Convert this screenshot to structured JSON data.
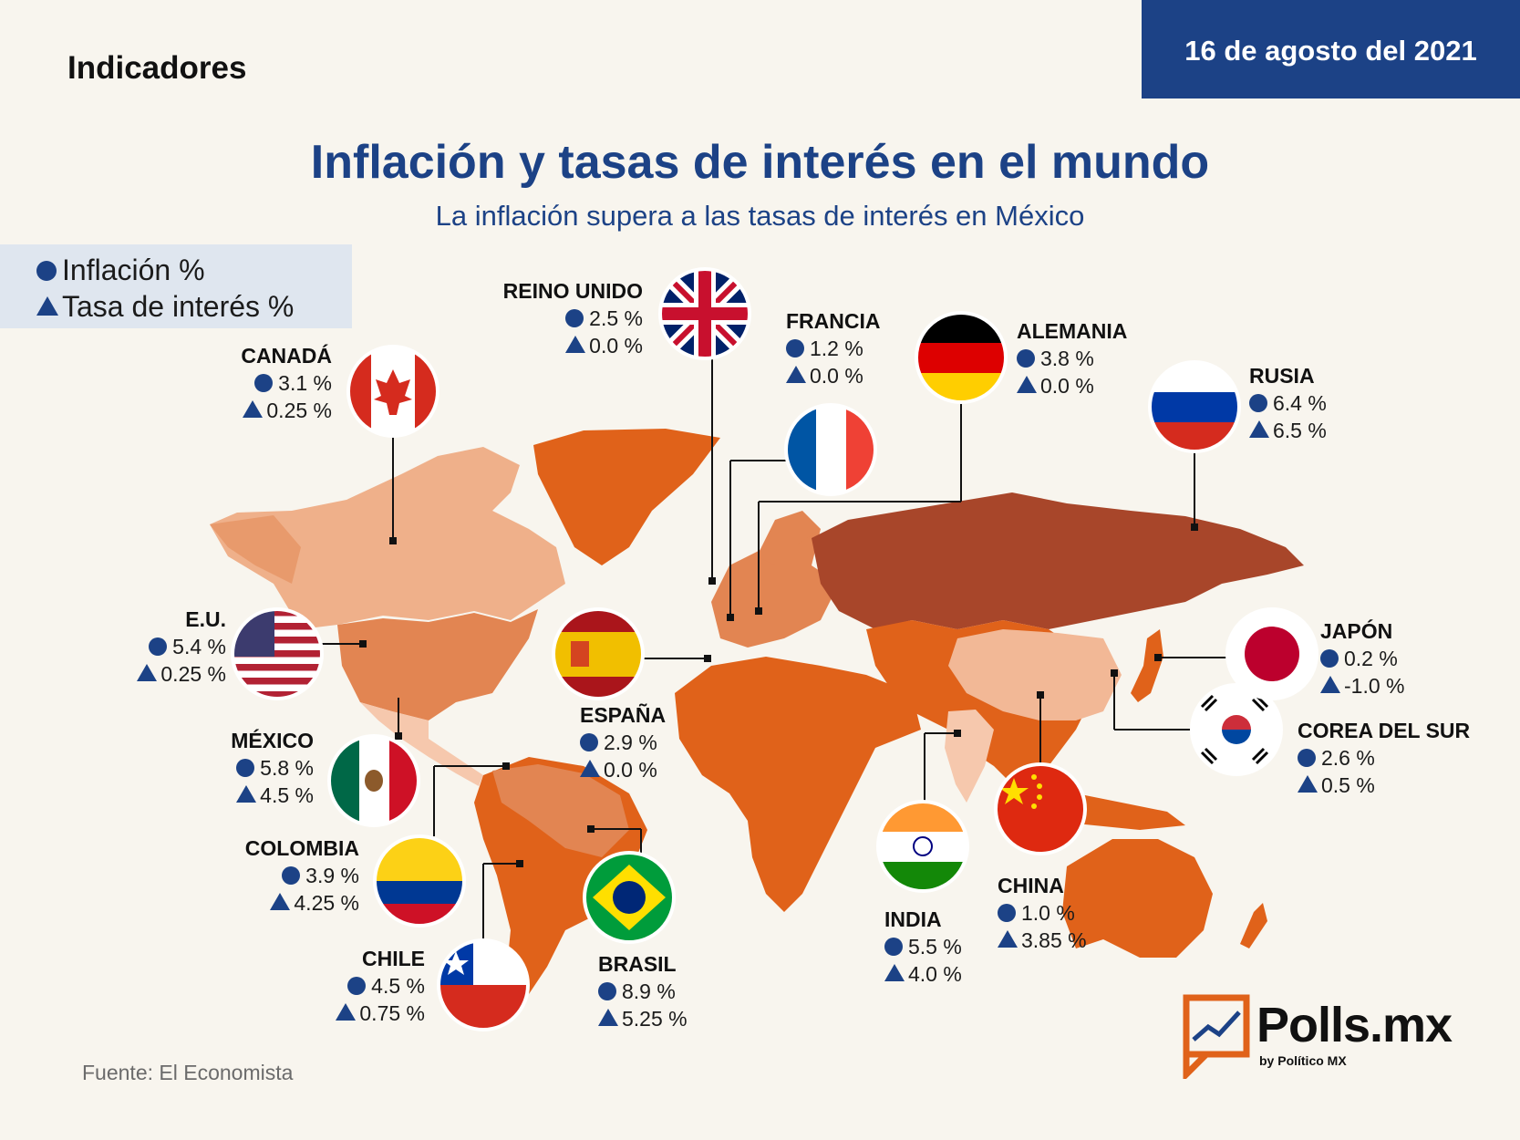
{
  "header": {
    "section": "Indicadores",
    "date": "16 de agosto del 2021"
  },
  "title": "Inflación y tasas de interés en el mundo",
  "subtitle": "La inflación supera a las tasas de interés en México",
  "legend": {
    "inflation": "Inflación %",
    "rate": "Tasa de interés %"
  },
  "countries": {
    "canada": {
      "name": "CANADÁ",
      "inflation": "3.1 %",
      "rate": "0.25 %"
    },
    "uk": {
      "name": "REINO UNIDO",
      "inflation": "2.5 %",
      "rate": "0.0 %"
    },
    "france": {
      "name": "FRANCIA",
      "inflation": "1.2 %",
      "rate": "0.0 %"
    },
    "germany": {
      "name": "ALEMANIA",
      "inflation": "3.8 %",
      "rate": "0.0 %"
    },
    "russia": {
      "name": "RUSIA",
      "inflation": "6.4 %",
      "rate": "6.5 %"
    },
    "usa": {
      "name": "E.U.",
      "inflation": "5.4 %",
      "rate": "0.25 %"
    },
    "mexico": {
      "name": "MÉXICO",
      "inflation": "5.8 %",
      "rate": "4.5 %"
    },
    "colombia": {
      "name": "COLOMBIA",
      "inflation": "3.9 %",
      "rate": "4.25 %"
    },
    "chile": {
      "name": "CHILE",
      "inflation": "4.5 %",
      "rate": "0.75 %"
    },
    "spain": {
      "name": "ESPAÑA",
      "inflation": "2.9 %",
      "rate": "0.0 %"
    },
    "brazil": {
      "name": "BRASIL",
      "inflation": "8.9 %",
      "rate": "5.25 %"
    },
    "india": {
      "name": "INDIA",
      "inflation": "5.5 %",
      "rate": "4.0 %"
    },
    "china": {
      "name": "CHINA",
      "inflation": "1.0 %",
      "rate": "3.85 %"
    },
    "japan": {
      "name": "JAPÓN",
      "inflation": "0.2 %",
      "rate": "-1.0 %"
    },
    "korea": {
      "name": "COREA DEL SUR",
      "inflation": "2.6 %",
      "rate": "0.5 %"
    }
  },
  "colors": {
    "brand_blue": "#1c4286",
    "map_light": "#efb08a",
    "map_mid": "#e28552",
    "map_orange": "#e0621a",
    "map_dark": "#a8462a",
    "map_pale": "#f6c8ad"
  },
  "source": "Fuente: El Economista",
  "logo": {
    "name": "Polls.mx",
    "tagline": "by Político MX"
  }
}
